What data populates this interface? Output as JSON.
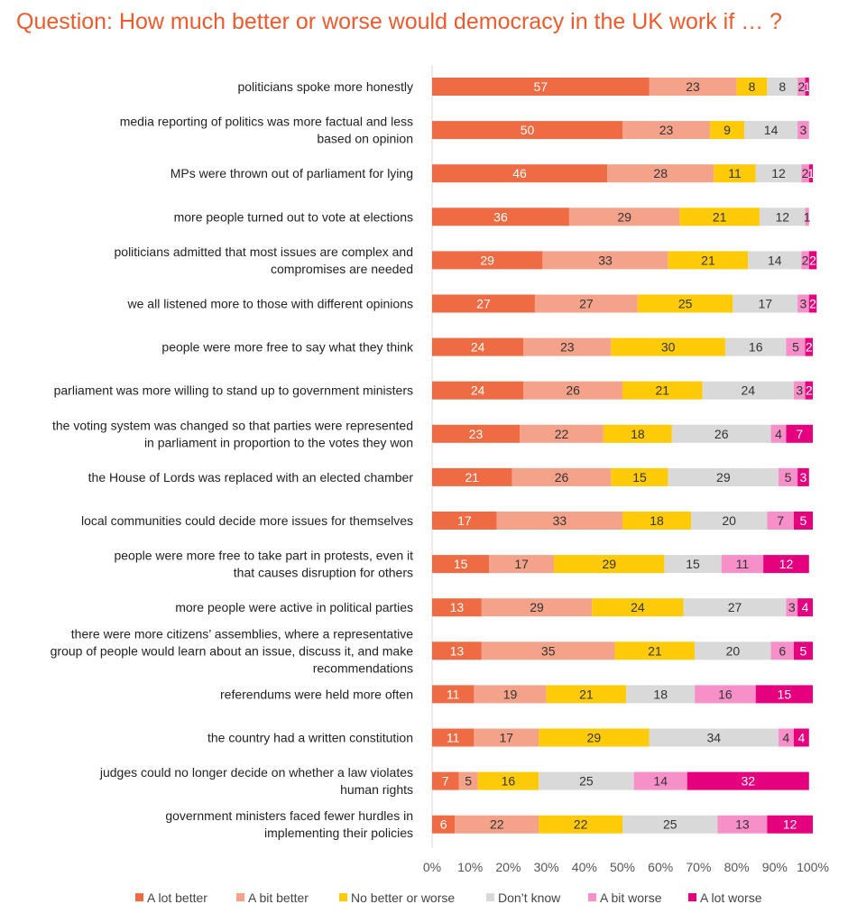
{
  "chart_data": {
    "type": "bar",
    "orientation": "horizontal",
    "stacked": true,
    "title": "Question: How much better or worse would democracy in the UK work if … ?",
    "xlabel": "",
    "ylabel": "",
    "xlim": [
      0,
      100
    ],
    "x_ticks": [
      "0%",
      "10%",
      "20%",
      "30%",
      "40%",
      "50%",
      "60%",
      "70%",
      "80%",
      "90%",
      "100%"
    ],
    "legend_position": "bottom",
    "categories": [
      [
        "politicians spoke more honestly"
      ],
      [
        "media reporting of politics was more factual and less",
        "based on opinion"
      ],
      [
        "MPs were thrown out of parliament for lying"
      ],
      [
        "more people turned out to vote at elections"
      ],
      [
        "politicians admitted that most issues are complex and",
        "compromises are needed"
      ],
      [
        "we all listened more to those with different opinions"
      ],
      [
        "people were more free to say what they think"
      ],
      [
        "parliament was more willing to stand up to government ministers"
      ],
      [
        "the voting system was changed so that parties were represented",
        "in parliament in proportion to the votes they won"
      ],
      [
        "the House of Lords was replaced with an elected chamber"
      ],
      [
        "local communities could decide more issues for themselves"
      ],
      [
        "people were more free to take part in protests, even it",
        "that causes disruption for others"
      ],
      [
        "more people were active in political parties"
      ],
      [
        "there were more citizens’ assemblies, where a representative",
        "group of people would learn about an issue, discuss it, and make",
        "recommendations"
      ],
      [
        "referendums were held more often"
      ],
      [
        "the country had a written constitution"
      ],
      [
        "judges could no longer decide on whether a law violates",
        "human rights"
      ],
      [
        "government ministers faced fewer hurdles in",
        "implementing their policies"
      ]
    ],
    "series": [
      {
        "name": "A lot better",
        "color": "#EE6B43",
        "label_color": "#FFFFFF",
        "values": [
          57,
          50,
          46,
          36,
          29,
          27,
          24,
          24,
          23,
          21,
          17,
          15,
          13,
          13,
          11,
          11,
          7,
          6
        ]
      },
      {
        "name": "A bit better",
        "color": "#F4A38A",
        "label_color": "#333333",
        "values": [
          23,
          23,
          28,
          29,
          33,
          27,
          23,
          26,
          22,
          26,
          33,
          17,
          29,
          35,
          19,
          17,
          5,
          22
        ]
      },
      {
        "name": "No better or worse",
        "color": "#FFCA08",
        "label_color": "#333333",
        "values": [
          8,
          9,
          11,
          21,
          21,
          25,
          30,
          21,
          18,
          15,
          18,
          29,
          24,
          21,
          21,
          29,
          16,
          22
        ]
      },
      {
        "name": "Don’t know",
        "color": "#D9D9D9",
        "label_color": "#333333",
        "values": [
          8,
          14,
          12,
          12,
          14,
          17,
          16,
          24,
          26,
          29,
          20,
          15,
          27,
          20,
          18,
          34,
          25,
          25
        ]
      },
      {
        "name": "A bit worse",
        "color": "#F78FC9",
        "label_color": "#333333",
        "values": [
          2,
          3,
          2,
          1,
          2,
          3,
          5,
          3,
          4,
          5,
          7,
          11,
          3,
          6,
          16,
          4,
          14,
          13
        ]
      },
      {
        "name": "A lot worse",
        "color": "#E5007E",
        "label_color": "#FFFFFF",
        "values": [
          1,
          0,
          1,
          0,
          2,
          2,
          2,
          2,
          7,
          3,
          5,
          12,
          4,
          5,
          15,
          4,
          32,
          12
        ]
      }
    ]
  }
}
